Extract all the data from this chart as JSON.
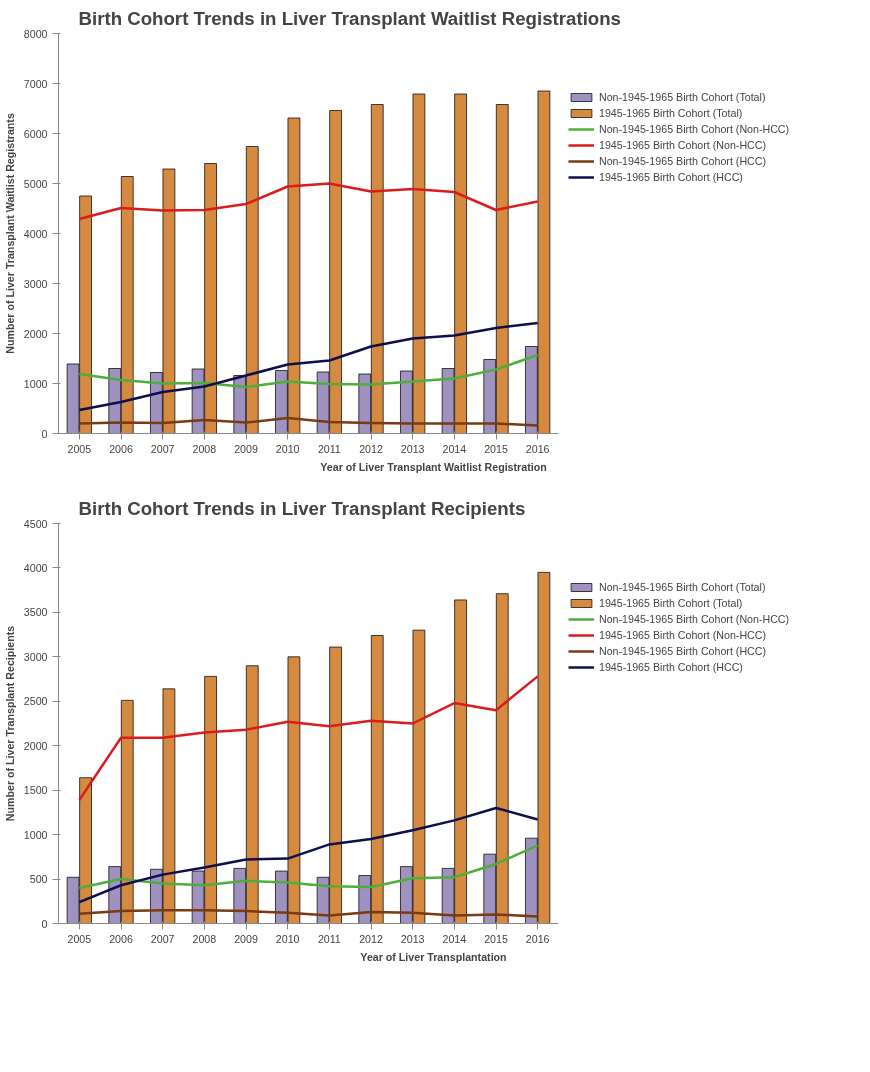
{
  "chart_data": [
    {
      "type": "bar",
      "title": "Birth Cohort Trends in Liver Transplant Waitlist Registrations",
      "xlabel": "Year of Liver Transplant Waitlist Registration",
      "ylabel": "Number of Liver Transplant Waitlist Registrants",
      "categories": [
        "2005",
        "2006",
        "2007",
        "2008",
        "2009",
        "2010",
        "2011",
        "2012",
        "2013",
        "2014",
        "2015",
        "2016"
      ],
      "ylim": [
        0,
        8000
      ],
      "yticks": [
        0,
        1000,
        2000,
        3000,
        4000,
        5000,
        6000,
        7000,
        8000
      ],
      "grid": false,
      "legend": "right",
      "series": [
        {
          "name": "Non-1945-1965 Birth Cohort (Total)",
          "color": "#9f91c0",
          "values": [
            1390,
            1300,
            1220,
            1290,
            1160,
            1260,
            1230,
            1190,
            1250,
            1300,
            1480,
            1740
          ]
        },
        {
          "name": "1945-1965 Birth Cohort (Total)",
          "color": "#d68a40",
          "values": [
            4750,
            5140,
            5290,
            5400,
            5740,
            6310,
            6460,
            6580,
            6790,
            6790,
            6580,
            6850
          ]
        },
        {
          "name": "Non-1945-1965 Birth Cohort (Non-HCC)",
          "type": "line",
          "color": "#4caf3c",
          "values": [
            1190,
            1070,
            1000,
            1010,
            930,
            1040,
            990,
            980,
            1040,
            1100,
            1280,
            1570
          ]
        },
        {
          "name": "1945-1965 Birth Cohort (Non-HCC)",
          "type": "line",
          "color": "#dc1c1c",
          "values": [
            4290,
            4510,
            4460,
            4470,
            4590,
            4940,
            5000,
            4840,
            4890,
            4830,
            4470,
            4640
          ]
        },
        {
          "name": "Non-1945-1965 Birth Cohort (HCC)",
          "type": "line",
          "color": "#7a3a12",
          "values": [
            200,
            220,
            210,
            270,
            220,
            310,
            230,
            210,
            200,
            200,
            200,
            160
          ]
        },
        {
          "name": "1945-1965 Birth Cohort (HCC)",
          "type": "line",
          "color": "#0c0f4e",
          "values": [
            470,
            630,
            830,
            940,
            1160,
            1380,
            1460,
            1740,
            1900,
            1960,
            2110,
            2210
          ]
        }
      ]
    },
    {
      "type": "bar",
      "title": "Birth Cohort Trends in Liver Transplant Recipients",
      "xlabel": "Year of Liver Transplantation",
      "ylabel": "Number of Liver Transplant Recipients",
      "categories": [
        "2005",
        "2006",
        "2007",
        "2008",
        "2009",
        "2010",
        "2011",
        "2012",
        "2013",
        "2014",
        "2015",
        "2016"
      ],
      "ylim": [
        0,
        4500
      ],
      "yticks": [
        0,
        500,
        1000,
        1500,
        2000,
        2500,
        3000,
        3500,
        4000,
        4500
      ],
      "grid": false,
      "legend": "right",
      "series": [
        {
          "name": "Non-1945-1965 Birth Cohort (Total)",
          "color": "#9f91c0",
          "values": [
            520,
            640,
            610,
            590,
            620,
            590,
            520,
            540,
            640,
            620,
            780,
            960
          ]
        },
        {
          "name": "1945-1965 Birth Cohort (Total)",
          "color": "#d68a40",
          "values": [
            1640,
            2510,
            2640,
            2780,
            2900,
            3000,
            3110,
            3240,
            3300,
            3640,
            3710,
            3950
          ]
        },
        {
          "name": "Non-1945-1965 Birth Cohort (Non-HCC)",
          "type": "line",
          "color": "#4caf3c",
          "values": [
            400,
            500,
            450,
            430,
            480,
            460,
            420,
            410,
            510,
            520,
            670,
            880
          ]
        },
        {
          "name": "1945-1965 Birth Cohort (Non-HCC)",
          "type": "line",
          "color": "#dc1c1c",
          "values": [
            1390,
            2090,
            2090,
            2150,
            2180,
            2270,
            2220,
            2280,
            2250,
            2480,
            2400,
            2780
          ]
        },
        {
          "name": "Non-1945-1965 Birth Cohort (HCC)",
          "type": "line",
          "color": "#7a3a12",
          "values": [
            110,
            140,
            150,
            150,
            140,
            120,
            90,
            130,
            120,
            90,
            100,
            80
          ]
        },
        {
          "name": "1945-1965 Birth Cohort (HCC)",
          "type": "line",
          "color": "#0c0f4e",
          "values": [
            240,
            430,
            550,
            630,
            720,
            730,
            890,
            950,
            1050,
            1160,
            1300,
            1170
          ]
        }
      ]
    }
  ]
}
